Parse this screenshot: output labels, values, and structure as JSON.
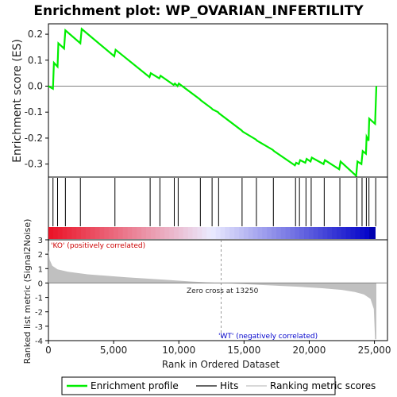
{
  "title": "Enrichment plot: WP_OVARIAN_INFERTILITY",
  "colors": {
    "es_line": "#00ee00",
    "hits": "#000000",
    "metric_fill": "#c0c0c0",
    "zero_line": "#808080",
    "pos_label": "#cc0000",
    "neg_label": "#0000cc"
  },
  "chart_data": {
    "type": "line",
    "top_panel": {
      "ylabel": "Enrichment score (ES)",
      "ylim": [
        -0.35,
        0.24
      ],
      "yticks": [
        "0.2",
        "0.1",
        "0.0",
        "-0.1",
        "-0.2",
        "-0.3"
      ],
      "ytick_values": [
        0.2,
        0.1,
        0.0,
        -0.1,
        -0.2,
        -0.3
      ],
      "series": [
        {
          "name": "Enrichment profile",
          "x": [
            0,
            350,
            420,
            700,
            760,
            1200,
            1300,
            2450,
            2550,
            5050,
            5150,
            7750,
            7850,
            8500,
            8600,
            9600,
            9700,
            9900,
            10000,
            11600,
            11700,
            12500,
            12600,
            13000,
            13100,
            14800,
            14900,
            15900,
            16000,
            17200,
            17300,
            18900,
            19000,
            19200,
            19300,
            19700,
            19800,
            20100,
            20200,
            21100,
            21200,
            22300,
            22400,
            23600,
            23700,
            24000,
            24100,
            24350,
            24400,
            24550,
            24600,
            25050,
            25150
          ],
          "y": [
            0.0,
            -0.01,
            0.09,
            0.075,
            0.165,
            0.145,
            0.215,
            0.165,
            0.22,
            0.115,
            0.14,
            0.035,
            0.05,
            0.03,
            0.04,
            0.005,
            0.01,
            0.0,
            0.01,
            -0.05,
            -0.055,
            -0.085,
            -0.09,
            -0.1,
            -0.105,
            -0.17,
            -0.175,
            -0.205,
            -0.21,
            -0.245,
            -0.25,
            -0.305,
            -0.295,
            -0.3,
            -0.285,
            -0.295,
            -0.28,
            -0.29,
            -0.275,
            -0.3,
            -0.285,
            -0.32,
            -0.29,
            -0.345,
            -0.29,
            -0.3,
            -0.25,
            -0.26,
            -0.195,
            -0.21,
            -0.125,
            -0.145,
            0.0
          ]
        }
      ]
    },
    "hits": [
      350,
      700,
      1300,
      2450,
      5100,
      7800,
      8550,
      9650,
      9950,
      11650,
      12550,
      13050,
      14850,
      15950,
      17250,
      18950,
      19250,
      19750,
      20150,
      21150,
      22350,
      23650,
      24050,
      24380,
      24580,
      25100
    ],
    "bottom_panel": {
      "ylabel": "Ranked list metric (Signal2Noise)",
      "ylim": [
        -4,
        3
      ],
      "yticks": [
        "3",
        "2",
        "1",
        "0",
        "-1",
        "-2",
        "-3",
        "-4"
      ],
      "ytick_values": [
        3,
        2,
        1,
        0,
        -1,
        -2,
        -3,
        -4
      ],
      "metric_x": [
        0,
        100,
        300,
        700,
        1500,
        3000,
        6000,
        9000,
        11000,
        13250,
        16000,
        19000,
        21000,
        22500,
        23500,
        24200,
        24700,
        24950,
        25050,
        25150
      ],
      "metric_y": [
        2.3,
        1.6,
        1.2,
        0.95,
        0.78,
        0.6,
        0.4,
        0.22,
        0.1,
        0.0,
        -0.12,
        -0.25,
        -0.36,
        -0.48,
        -0.62,
        -0.8,
        -1.1,
        -1.8,
        -3.9,
        -3.9
      ]
    },
    "xlabel": "Rank in Ordered Dataset",
    "xlim": [
      0,
      26000
    ],
    "xticks": [
      "0",
      "5,000",
      "10,000",
      "15,000",
      "20,000",
      "25,000"
    ],
    "xtick_values": [
      0,
      5000,
      10000,
      15000,
      20000,
      25000
    ],
    "zero_cross_x": 13250,
    "annotations": {
      "pos": "'KO' (positively correlated)",
      "neg": "'WT' (negatively correlated)",
      "zero_cross": "Zero cross at 13250"
    },
    "legend": {
      "placement": "bottom",
      "items": [
        "Enrichment profile",
        "Hits",
        "Ranking metric scores"
      ]
    }
  }
}
